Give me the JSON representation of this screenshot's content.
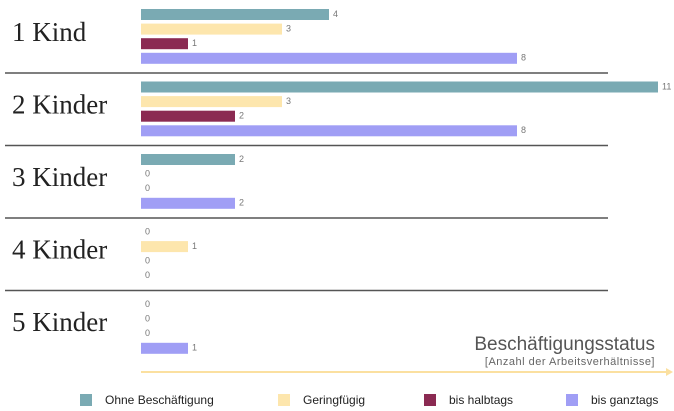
{
  "chart_data": {
    "type": "hbar",
    "title": "Beschäftigungsstatus",
    "subtitle": "[Anzahl der Arbeitsverhältnisse]",
    "categories": [
      "1 Kind",
      "2 Kinder",
      "3 Kinder",
      "4 Kinder",
      "5 Kinder"
    ],
    "series": [
      {
        "name": "Ohne Beschäftigung",
        "color": "#7aaab3",
        "values": [
          4,
          11,
          2,
          0,
          0
        ]
      },
      {
        "name": "Geringfügig",
        "color": "#fde6ad",
        "values": [
          3,
          3,
          0,
          1,
          0
        ]
      },
      {
        "name": "bis halbtags",
        "color": "#8b2a52",
        "values": [
          1,
          2,
          0,
          0,
          0
        ]
      },
      {
        "name": "bis ganztags",
        "color": "#a09ef5",
        "values": [
          8,
          8,
          2,
          0,
          1
        ]
      }
    ],
    "xlim": [
      0,
      11
    ]
  }
}
